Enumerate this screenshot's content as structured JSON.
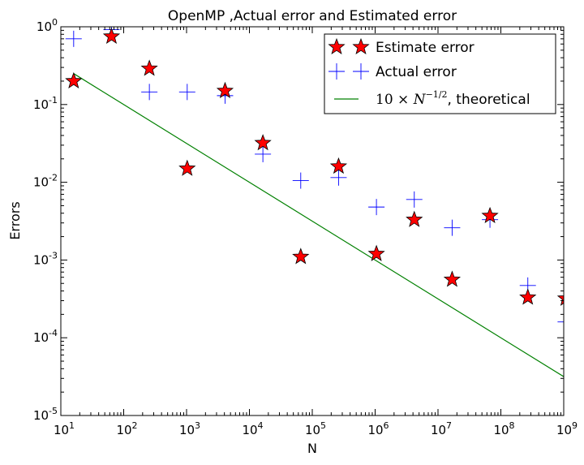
{
  "chart_data": {
    "type": "scatter",
    "title": "OpenMP ,Actual error and Estimated error",
    "xlabel": "N",
    "ylabel": "Errors",
    "xscale": "log",
    "yscale": "log",
    "xlim": [
      10,
      1000000000
    ],
    "ylim": [
      1e-05,
      1
    ],
    "grid": false,
    "legend_position": "top-right",
    "x_ticks": [
      {
        "value": 10,
        "base": "10",
        "exp": "1"
      },
      {
        "value": 100,
        "base": "10",
        "exp": "2"
      },
      {
        "value": 1000,
        "base": "10",
        "exp": "3"
      },
      {
        "value": 10000,
        "base": "10",
        "exp": "4"
      },
      {
        "value": 100000,
        "base": "10",
        "exp": "5"
      },
      {
        "value": 1000000,
        "base": "10",
        "exp": "6"
      },
      {
        "value": 10000000,
        "base": "10",
        "exp": "7"
      },
      {
        "value": 100000000,
        "base": "10",
        "exp": "8"
      },
      {
        "value": 1000000000,
        "base": "10",
        "exp": "9"
      }
    ],
    "y_ticks": [
      {
        "value": 1e-05,
        "base": "10",
        "exp": "-5"
      },
      {
        "value": 0.0001,
        "base": "10",
        "exp": "-4"
      },
      {
        "value": 0.001,
        "base": "10",
        "exp": "-3"
      },
      {
        "value": 0.01,
        "base": "10",
        "exp": "-2"
      },
      {
        "value": 0.1,
        "base": "10",
        "exp": "-1"
      },
      {
        "value": 1,
        "base": "10",
        "exp": "0"
      }
    ],
    "series": [
      {
        "name": "Estimate error",
        "marker": "star",
        "color": "#ff0000",
        "x": [
          16,
          64,
          256,
          1024,
          4096,
          16384,
          65536,
          262144,
          1048576,
          4194304,
          16777216,
          67108864,
          268435456,
          1073741824
        ],
        "y": [
          0.2,
          0.75,
          0.29,
          0.015,
          0.15,
          0.032,
          0.0011,
          0.016,
          0.0012,
          0.0033,
          0.00056,
          0.0037,
          0.00033,
          0.00032
        ]
      },
      {
        "name": "Actual error",
        "marker": "plus",
        "color": "#0000ff",
        "x": [
          16,
          64,
          256,
          1024,
          4096,
          16384,
          65536,
          262144,
          1048576,
          4194304,
          16777216,
          67108864,
          268435456,
          1073741824
        ],
        "y": [
          0.7,
          0.92,
          0.145,
          0.145,
          0.13,
          0.023,
          0.0105,
          0.0115,
          0.0048,
          0.006,
          0.0026,
          0.0033,
          0.00047,
          0.00016
        ]
      },
      {
        "name": "theoretical",
        "legend_math": {
          "coef": "10",
          "times": "×",
          "var": "N",
          "exp": "−1/2"
        },
        "legend_suffix": ", theoretical",
        "marker": "line",
        "color": "#008000",
        "x": [
          16,
          1000000000
        ],
        "y": [
          0.25,
          3.16e-05
        ]
      }
    ]
  }
}
